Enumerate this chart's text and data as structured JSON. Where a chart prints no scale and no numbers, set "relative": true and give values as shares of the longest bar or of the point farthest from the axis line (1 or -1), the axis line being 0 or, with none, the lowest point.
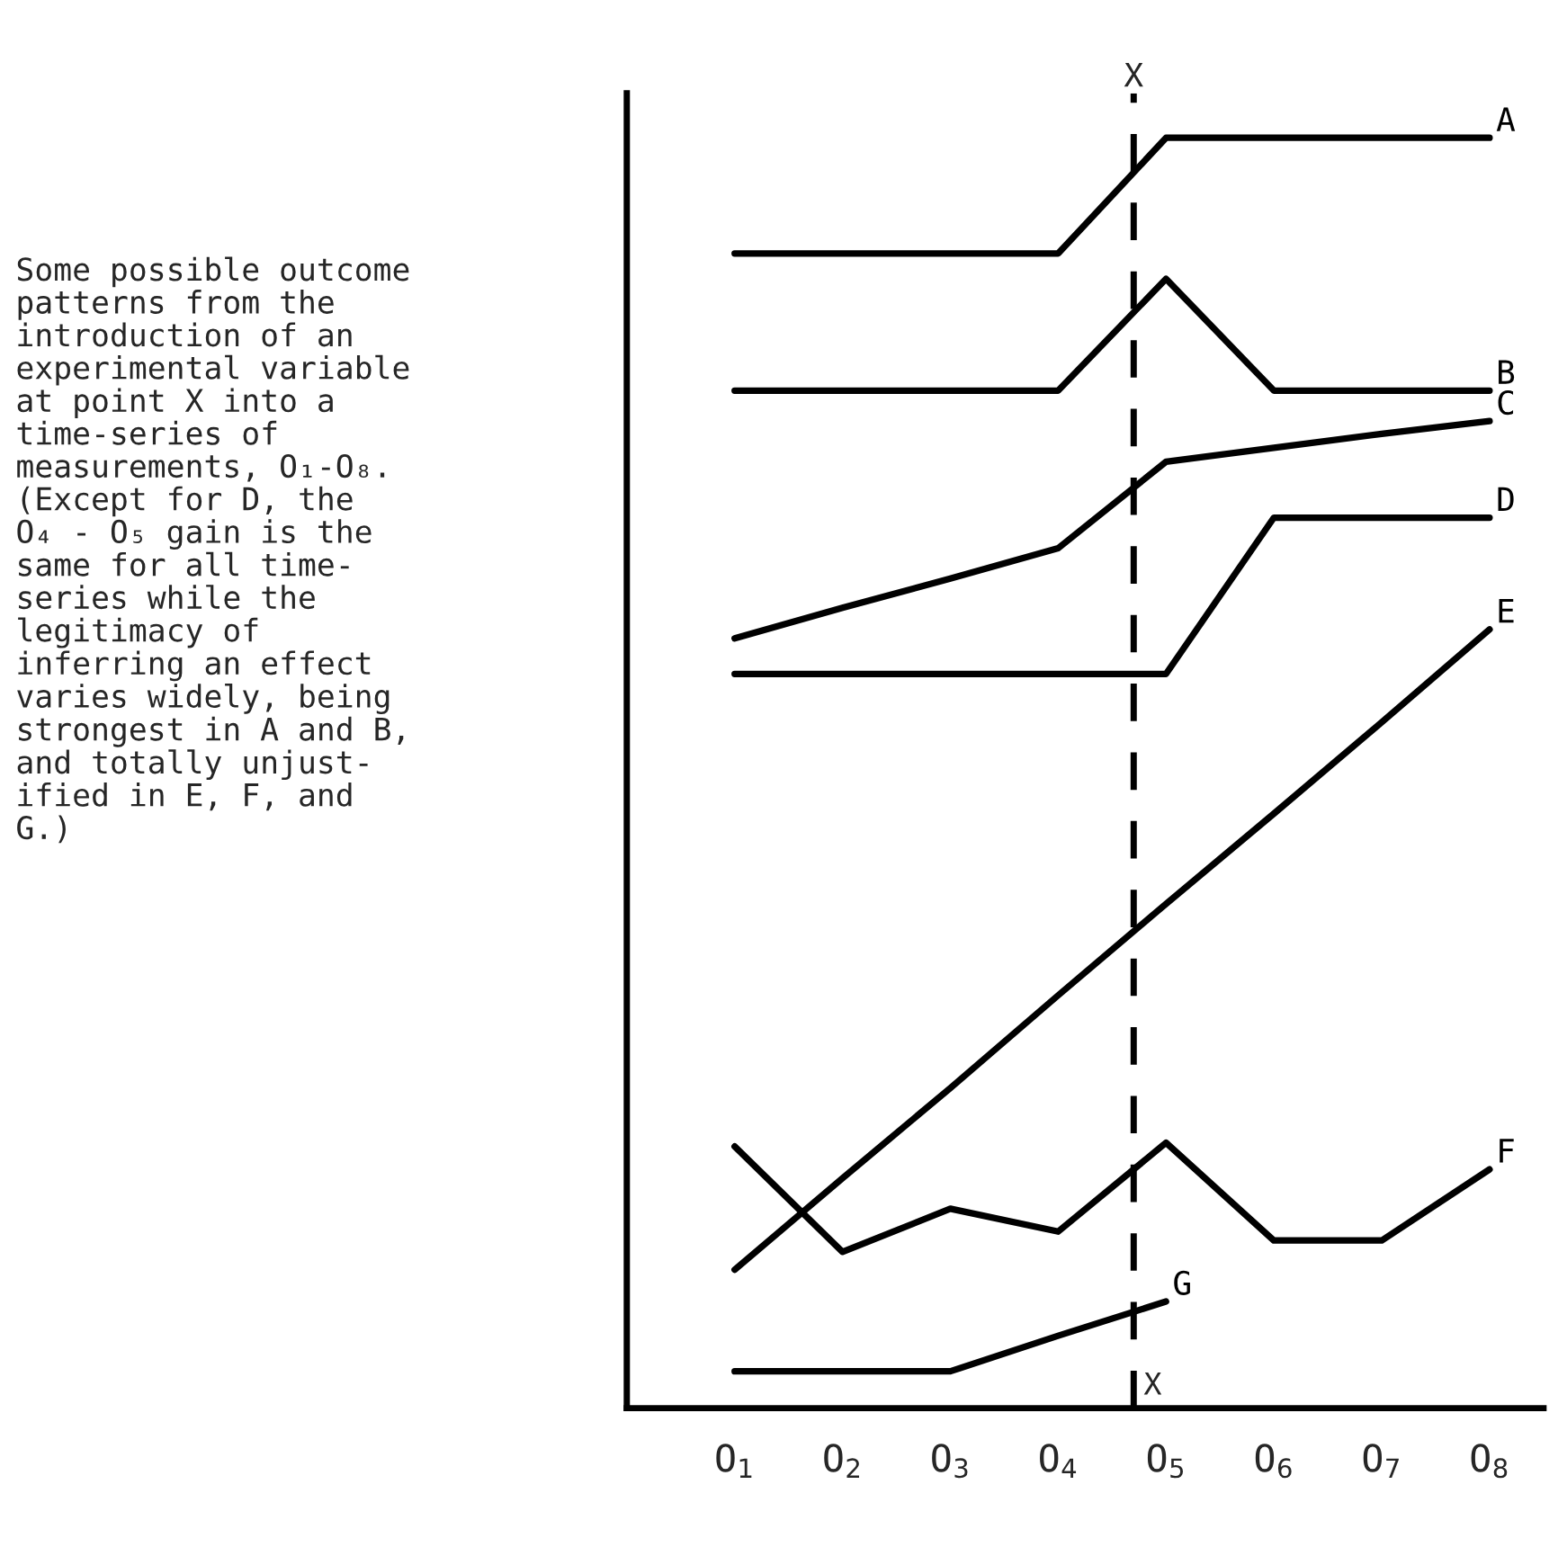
{
  "chart_data": {
    "type": "line",
    "relative": true,
    "x": [
      1,
      2,
      3,
      4,
      5,
      6,
      7,
      8
    ],
    "xlim": [
      0,
      8.5
    ],
    "xticks": [
      {
        "value": 1,
        "label": "O$_{1}$"
      },
      {
        "value": 2,
        "label": "O$_{2}$"
      },
      {
        "value": 3,
        "label": "O$_{3}$"
      },
      {
        "value": 4,
        "label": "O$_{4}$"
      },
      {
        "value": 5,
        "label": "O$_{5}$"
      },
      {
        "value": 6,
        "label": "O$_{6}$"
      },
      {
        "value": 7,
        "label": "O$_{7}$"
      },
      {
        "value": 8,
        "label": "O$_{8}$"
      }
    ],
    "series": [
      {
        "name": "A",
        "color": "#000000",
        "values": [
          0.909,
          0.909,
          0.909,
          0.909,
          1,
          1,
          1,
          1
        ]
      },
      {
        "name": "B",
        "color": "#000000",
        "values": [
          0.801,
          0.801,
          0.801,
          0.801,
          0.889,
          0.801,
          0.801,
          0.801
        ]
      },
      {
        "name": "C",
        "color": "#000000",
        "values": [
          0.606,
          0.63,
          0.653,
          0.677,
          0.745,
          0.756,
          0.767,
          0.777
        ]
      },
      {
        "name": "D",
        "color": "#000000",
        "values": [
          0.578,
          0.578,
          0.578,
          0.578,
          0.578,
          0.701,
          0.701,
          0.701
        ]
      },
      {
        "name": "E",
        "color": "#000000",
        "values": [
          0.109,
          0.181,
          0.252,
          0.325,
          0.397,
          0.468,
          0.54,
          0.613
        ]
      },
      {
        "name": "F",
        "color": "#000000",
        "values": [
          0.206,
          0.123,
          0.157,
          0.139,
          0.209,
          0.132,
          0.132,
          0.188
        ]
      },
      {
        "name": "G",
        "color": "#000000",
        "values": [
          0.029,
          0.029,
          0.029,
          0.057,
          0.084,
          null,
          null,
          null
        ]
      }
    ],
    "ref_lines": [
      {
        "axis": "x",
        "value": 4.7,
        "label": "X",
        "line_style": "dashed",
        "color": "#000000"
      }
    ],
    "annotations": [
      {
        "text": "X",
        "x": 4.7,
        "y": 0
      },
      "Some possible outcome\npatterns from the\nintroduction of an\nexperimental variable\nat point X into a\ntime-series of\nmeasurements, O₁-O₈.\n(Except for D, the\nO₄ - O₅ gain is the\nsame for all time-\nseries while the\nlegitimacy of\ninferring an effect\nvaries widely, being\nstrongest in A and B,\nand totally unjust-\nified in E, F, and\nG.)"
    ],
    "grid": false,
    "legend": false
  }
}
